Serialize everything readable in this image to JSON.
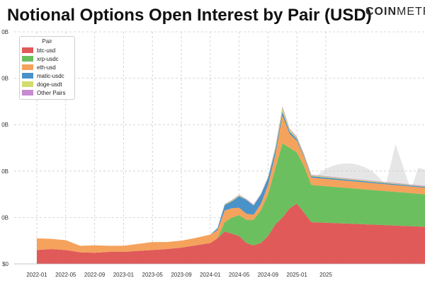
{
  "header": {
    "title": "Notional Options Open Interest by Pair (USD)",
    "brand_main": "COIN",
    "brand_tail": "METR"
  },
  "chart_data": {
    "type": "area",
    "stacked": true,
    "title": "Notional Options Open Interest by Pair (USD)",
    "xlabel": "",
    "ylabel": "",
    "legend_title": "Pair",
    "legend_placement": "top-left",
    "grid": true,
    "x_ticks": [
      "2022-01",
      "2022-05",
      "2022-09",
      "2023-01",
      "2023-05",
      "2023-09",
      "2024-01",
      "2024-05",
      "2024-09",
      "2025-01",
      "2025"
    ],
    "y_ticks": [
      "$0",
      "0B",
      "0B",
      "0B",
      "0B",
      "0B"
    ],
    "ylim": [
      0,
      50
    ],
    "x": [
      "2022-01",
      "2022-03",
      "2022-05",
      "2022-07",
      "2022-09",
      "2022-11",
      "2023-01",
      "2023-03",
      "2023-05",
      "2023-07",
      "2023-09",
      "2023-11",
      "2024-01",
      "2024-02",
      "2024-03",
      "2024-04",
      "2024-05",
      "2024-06",
      "2024-07",
      "2024-08",
      "2024-09",
      "2024-10",
      "2024-11",
      "2024-12",
      "2025-01",
      "2025-02",
      "2025-03",
      "2025-04"
    ],
    "series": [
      {
        "name": "btc-usd",
        "color": "#e05a5a",
        "values": [
          3.0,
          3.2,
          3.0,
          2.5,
          2.4,
          2.6,
          2.6,
          2.8,
          3.0,
          3.2,
          3.5,
          4.0,
          4.5,
          5.5,
          7.0,
          6.5,
          6.0,
          4.5,
          4.0,
          4.5,
          6.0,
          8.5,
          10.0,
          12.0,
          13.0,
          11.0,
          9.0,
          8.0
        ]
      },
      {
        "name": "xrp-usdc",
        "color": "#6cbf5e",
        "values": [
          0,
          0,
          0,
          0,
          0,
          0,
          0,
          0,
          0,
          0,
          0,
          0,
          0,
          0,
          2.0,
          3.5,
          4.5,
          5.0,
          5.5,
          7.0,
          9.0,
          12.0,
          16.0,
          13.0,
          11.0,
          10.0,
          8.0,
          7.0
        ]
      },
      {
        "name": "eth-usd",
        "color": "#f5a25d",
        "values": [
          2.5,
          2.2,
          2.1,
          1.4,
          1.6,
          1.3,
          1.3,
          1.5,
          1.7,
          1.5,
          1.5,
          1.6,
          1.8,
          1.8,
          2.5,
          2.0,
          1.6,
          1.3,
          1.1,
          1.4,
          2.0,
          3.0,
          6.0,
          3.0,
          2.5,
          2.0,
          1.6,
          1.4
        ]
      },
      {
        "name": "matic-usdc",
        "color": "#4a92c8",
        "values": [
          0,
          0,
          0,
          0,
          0,
          0,
          0,
          0,
          0,
          0,
          0,
          0,
          0,
          0.4,
          1.2,
          1.5,
          2.5,
          3.0,
          2.0,
          2.0,
          1.5,
          1.0,
          0.8,
          0.5,
          0.4,
          0.3,
          0.3,
          0.2
        ]
      },
      {
        "name": "doge-usdt",
        "color": "#d4dc70",
        "values": [
          0,
          0,
          0,
          0,
          0,
          0,
          0,
          0,
          0,
          0,
          0,
          0,
          0,
          0,
          0.1,
          0.2,
          0.2,
          0.1,
          0.1,
          0.1,
          0.2,
          0.4,
          0.8,
          0.4,
          0.3,
          0.2,
          0.2,
          0.1
        ]
      },
      {
        "name": "Other Pairs",
        "color": "#c98ad4",
        "values": [
          0,
          0,
          0,
          0,
          0,
          0,
          0,
          0,
          0,
          0,
          0,
          0,
          0,
          0,
          0.1,
          0.1,
          0.1,
          0.1,
          0.1,
          0.1,
          0.1,
          0.2,
          0.3,
          0.2,
          0.2,
          0.1,
          0.1,
          0.1
        ]
      }
    ]
  }
}
